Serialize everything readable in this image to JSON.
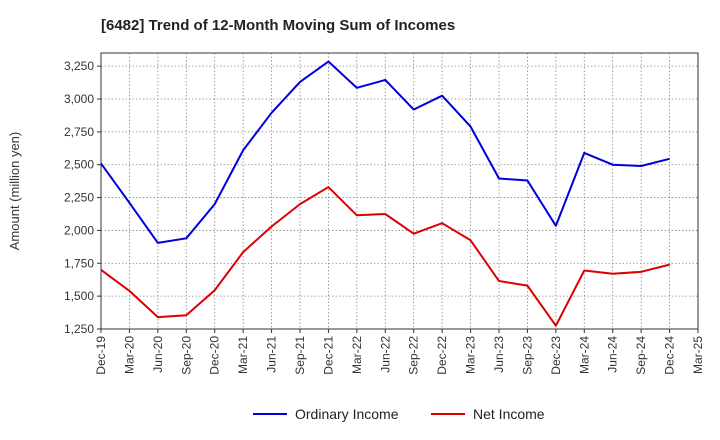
{
  "chart_data": {
    "type": "line",
    "title": "[6482]  Trend of 12-Month Moving Sum of Incomes",
    "xlabel": "",
    "ylabel": "Amount (million yen)",
    "ylim": [
      1250,
      3350
    ],
    "yticks": [
      1250,
      1500,
      1750,
      2000,
      2250,
      2500,
      2750,
      3000,
      3250
    ],
    "ytick_labels": [
      "1,250",
      "1,500",
      "1,750",
      "2,000",
      "2,250",
      "2,500",
      "2,750",
      "3,000",
      "3,250"
    ],
    "categories": [
      "Dec-19",
      "Mar-20",
      "Jun-20",
      "Sep-20",
      "Dec-20",
      "Mar-21",
      "Jun-21",
      "Sep-21",
      "Dec-21",
      "Mar-22",
      "Jun-22",
      "Sep-22",
      "Dec-22",
      "Mar-23",
      "Jun-23",
      "Sep-23",
      "Dec-23",
      "Mar-24",
      "Jun-24",
      "Sep-24",
      "Dec-24",
      "Mar-25"
    ],
    "grid": true,
    "legend_position": "bottom",
    "series": [
      {
        "name": "Ordinary Income",
        "color": "#0000dd",
        "values": [
          2510,
          2210,
          1905,
          1940,
          2200,
          2610,
          2895,
          3130,
          3285,
          3085,
          3145,
          2920,
          3025,
          2790,
          2395,
          2380,
          2035,
          2590,
          2500,
          2490,
          2545,
          null
        ]
      },
      {
        "name": "Net Income",
        "color": "#dd0000",
        "values": [
          1700,
          1540,
          1340,
          1355,
          1545,
          1835,
          2030,
          2200,
          2330,
          2115,
          2125,
          1975,
          2055,
          1925,
          1615,
          1580,
          1275,
          1695,
          1670,
          1685,
          1740,
          null
        ]
      }
    ]
  }
}
